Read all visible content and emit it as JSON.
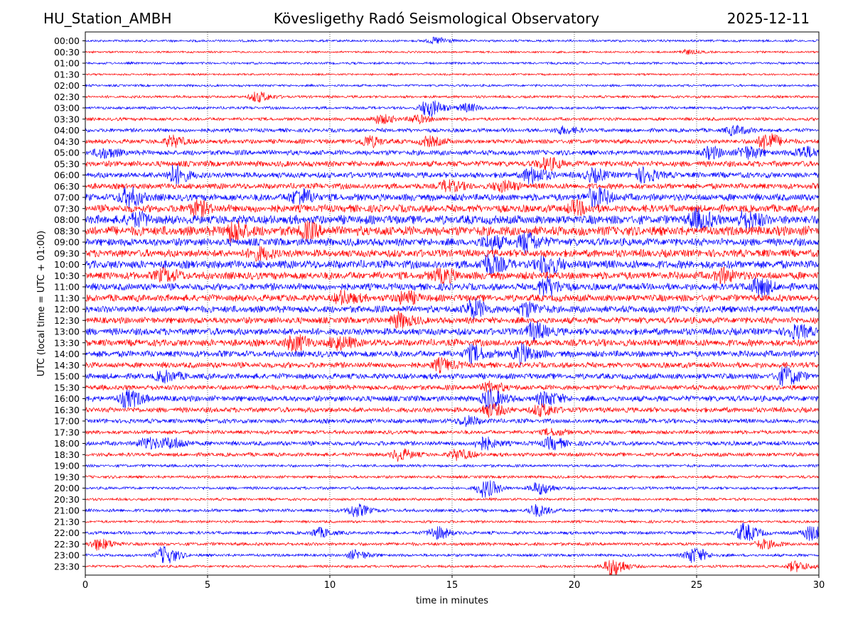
{
  "header": {
    "station": "HU_Station_AMBH",
    "title": "Kövesligethy Radó Seismological Observatory",
    "date": "2025-12-11"
  },
  "chart_data": {
    "type": "line",
    "subtype": "helicorder",
    "xlabel": "time in minutes",
    "ylabel": "UTC (local time = UTC + 01:00)",
    "xlim": [
      0,
      30
    ],
    "xticks": [
      0,
      5,
      10,
      15,
      20,
      25,
      30
    ],
    "grid": "vertical dotted at x ticks",
    "colors": [
      "#0000ff",
      "#ff0000"
    ],
    "row_labels": [
      "00:00",
      "00:30",
      "01:00",
      "01:30",
      "02:00",
      "02:30",
      "03:00",
      "03:30",
      "04:00",
      "04:30",
      "05:00",
      "05:30",
      "06:00",
      "06:30",
      "07:00",
      "07:30",
      "08:00",
      "08:30",
      "09:00",
      "09:30",
      "10:00",
      "10:30",
      "11:00",
      "11:30",
      "12:00",
      "12:30",
      "13:00",
      "13:30",
      "14:00",
      "14:30",
      "15:00",
      "15:30",
      "16:00",
      "16:30",
      "17:00",
      "17:30",
      "18:00",
      "18:30",
      "19:00",
      "19:30",
      "20:00",
      "20:30",
      "21:00",
      "21:30",
      "22:00",
      "22:30",
      "23:00",
      "23:30"
    ],
    "noise_amplitude": [
      0.18,
      0.15,
      0.18,
      0.15,
      0.18,
      0.2,
      0.22,
      0.25,
      0.3,
      0.35,
      0.4,
      0.45,
      0.45,
      0.45,
      0.55,
      0.6,
      0.7,
      0.75,
      0.6,
      0.6,
      0.65,
      0.6,
      0.55,
      0.55,
      0.55,
      0.5,
      0.55,
      0.55,
      0.5,
      0.45,
      0.45,
      0.4,
      0.45,
      0.4,
      0.35,
      0.3,
      0.35,
      0.3,
      0.22,
      0.22,
      0.22,
      0.2,
      0.25,
      0.2,
      0.25,
      0.25,
      0.22,
      0.2
    ],
    "bursts": [
      {
        "row": 0,
        "t": 14.3,
        "amp": 0.6
      },
      {
        "row": 1,
        "t": 24.5,
        "amp": 0.4
      },
      {
        "row": 5,
        "t": 7.0,
        "amp": 0.9
      },
      {
        "row": 6,
        "t": 14.0,
        "amp": 1.6
      },
      {
        "row": 6,
        "t": 15.5,
        "amp": 0.7
      },
      {
        "row": 7,
        "t": 12.0,
        "amp": 0.8
      },
      {
        "row": 7,
        "t": 13.5,
        "amp": 0.7
      },
      {
        "row": 8,
        "t": 19.5,
        "amp": 0.6
      },
      {
        "row": 8,
        "t": 26.5,
        "amp": 0.8
      },
      {
        "row": 9,
        "t": 3.5,
        "amp": 0.9
      },
      {
        "row": 9,
        "t": 11.5,
        "amp": 0.9
      },
      {
        "row": 9,
        "t": 14.0,
        "amp": 0.8
      },
      {
        "row": 9,
        "t": 27.8,
        "amp": 1.6
      },
      {
        "row": 10,
        "t": 0.7,
        "amp": 0.9
      },
      {
        "row": 10,
        "t": 25.5,
        "amp": 0.9
      },
      {
        "row": 10,
        "t": 27.0,
        "amp": 1.1
      },
      {
        "row": 10,
        "t": 29.3,
        "amp": 1.0
      },
      {
        "row": 11,
        "t": 18.8,
        "amp": 1.0
      },
      {
        "row": 12,
        "t": 3.6,
        "amp": 1.6
      },
      {
        "row": 12,
        "t": 18.2,
        "amp": 1.4
      },
      {
        "row": 12,
        "t": 20.7,
        "amp": 1.0
      },
      {
        "row": 12,
        "t": 22.8,
        "amp": 1.2
      },
      {
        "row": 13,
        "t": 14.8,
        "amp": 0.9
      },
      {
        "row": 13,
        "t": 17.0,
        "amp": 0.9
      },
      {
        "row": 14,
        "t": 1.7,
        "amp": 1.6
      },
      {
        "row": 14,
        "t": 8.7,
        "amp": 1.4
      },
      {
        "row": 14,
        "t": 20.8,
        "amp": 1.6
      },
      {
        "row": 15,
        "t": 4.5,
        "amp": 1.1
      },
      {
        "row": 15,
        "t": 20.0,
        "amp": 1.0
      },
      {
        "row": 16,
        "t": 2.0,
        "amp": 1.0
      },
      {
        "row": 16,
        "t": 25.0,
        "amp": 1.6
      },
      {
        "row": 16,
        "t": 27.0,
        "amp": 1.4
      },
      {
        "row": 17,
        "t": 6.0,
        "amp": 1.6
      },
      {
        "row": 17,
        "t": 9.0,
        "amp": 1.1
      },
      {
        "row": 18,
        "t": 16.5,
        "amp": 1.1
      },
      {
        "row": 18,
        "t": 18.0,
        "amp": 1.6
      },
      {
        "row": 19,
        "t": 7.0,
        "amp": 1.0
      },
      {
        "row": 20,
        "t": 16.5,
        "amp": 1.6
      },
      {
        "row": 20,
        "t": 18.8,
        "amp": 1.5
      },
      {
        "row": 21,
        "t": 3.2,
        "amp": 1.0
      },
      {
        "row": 21,
        "t": 14.5,
        "amp": 1.1
      },
      {
        "row": 21,
        "t": 26.0,
        "amp": 1.0
      },
      {
        "row": 22,
        "t": 18.8,
        "amp": 1.6
      },
      {
        "row": 22,
        "t": 27.5,
        "amp": 1.5
      },
      {
        "row": 23,
        "t": 10.5,
        "amp": 1.0
      },
      {
        "row": 23,
        "t": 13.0,
        "amp": 1.0
      },
      {
        "row": 24,
        "t": 15.8,
        "amp": 1.6
      },
      {
        "row": 24,
        "t": 18.0,
        "amp": 1.1
      },
      {
        "row": 25,
        "t": 12.8,
        "amp": 1.2
      },
      {
        "row": 26,
        "t": 18.3,
        "amp": 1.4
      },
      {
        "row": 26,
        "t": 29.0,
        "amp": 1.1
      },
      {
        "row": 27,
        "t": 8.5,
        "amp": 1.3
      },
      {
        "row": 27,
        "t": 10.3,
        "amp": 1.1
      },
      {
        "row": 28,
        "t": 15.8,
        "amp": 1.3
      },
      {
        "row": 28,
        "t": 17.8,
        "amp": 1.5
      },
      {
        "row": 29,
        "t": 14.5,
        "amp": 1.0
      },
      {
        "row": 30,
        "t": 28.6,
        "amp": 1.6
      },
      {
        "row": 30,
        "t": 3.2,
        "amp": 0.9
      },
      {
        "row": 31,
        "t": 16.5,
        "amp": 0.9
      },
      {
        "row": 32,
        "t": 1.7,
        "amp": 1.5
      },
      {
        "row": 32,
        "t": 16.5,
        "amp": 1.6
      },
      {
        "row": 32,
        "t": 18.8,
        "amp": 1.2
      },
      {
        "row": 33,
        "t": 16.5,
        "amp": 1.1
      },
      {
        "row": 33,
        "t": 18.6,
        "amp": 1.0
      },
      {
        "row": 34,
        "t": 15.5,
        "amp": 0.8
      },
      {
        "row": 35,
        "t": 19.0,
        "amp": 0.6
      },
      {
        "row": 36,
        "t": 2.5,
        "amp": 1.0
      },
      {
        "row": 36,
        "t": 3.5,
        "amp": 0.9
      },
      {
        "row": 36,
        "t": 16.2,
        "amp": 1.1
      },
      {
        "row": 36,
        "t": 19.0,
        "amp": 1.0
      },
      {
        "row": 37,
        "t": 12.8,
        "amp": 1.0
      },
      {
        "row": 37,
        "t": 15.2,
        "amp": 0.9
      },
      {
        "row": 40,
        "t": 16.3,
        "amp": 1.6
      },
      {
        "row": 40,
        "t": 18.5,
        "amp": 1.1
      },
      {
        "row": 42,
        "t": 11.0,
        "amp": 1.1
      },
      {
        "row": 42,
        "t": 18.4,
        "amp": 1.0
      },
      {
        "row": 44,
        "t": 9.5,
        "amp": 0.8
      },
      {
        "row": 44,
        "t": 14.3,
        "amp": 1.1
      },
      {
        "row": 44,
        "t": 26.9,
        "amp": 1.6
      },
      {
        "row": 44,
        "t": 29.6,
        "amp": 1.3
      },
      {
        "row": 45,
        "t": 0.5,
        "amp": 1.0
      },
      {
        "row": 45,
        "t": 27.7,
        "amp": 0.8
      },
      {
        "row": 46,
        "t": 3.2,
        "amp": 1.6
      },
      {
        "row": 46,
        "t": 11.0,
        "amp": 0.8
      },
      {
        "row": 46,
        "t": 24.8,
        "amp": 1.4
      },
      {
        "row": 47,
        "t": 21.5,
        "amp": 1.7
      },
      {
        "row": 47,
        "t": 29.0,
        "amp": 0.9
      }
    ]
  }
}
